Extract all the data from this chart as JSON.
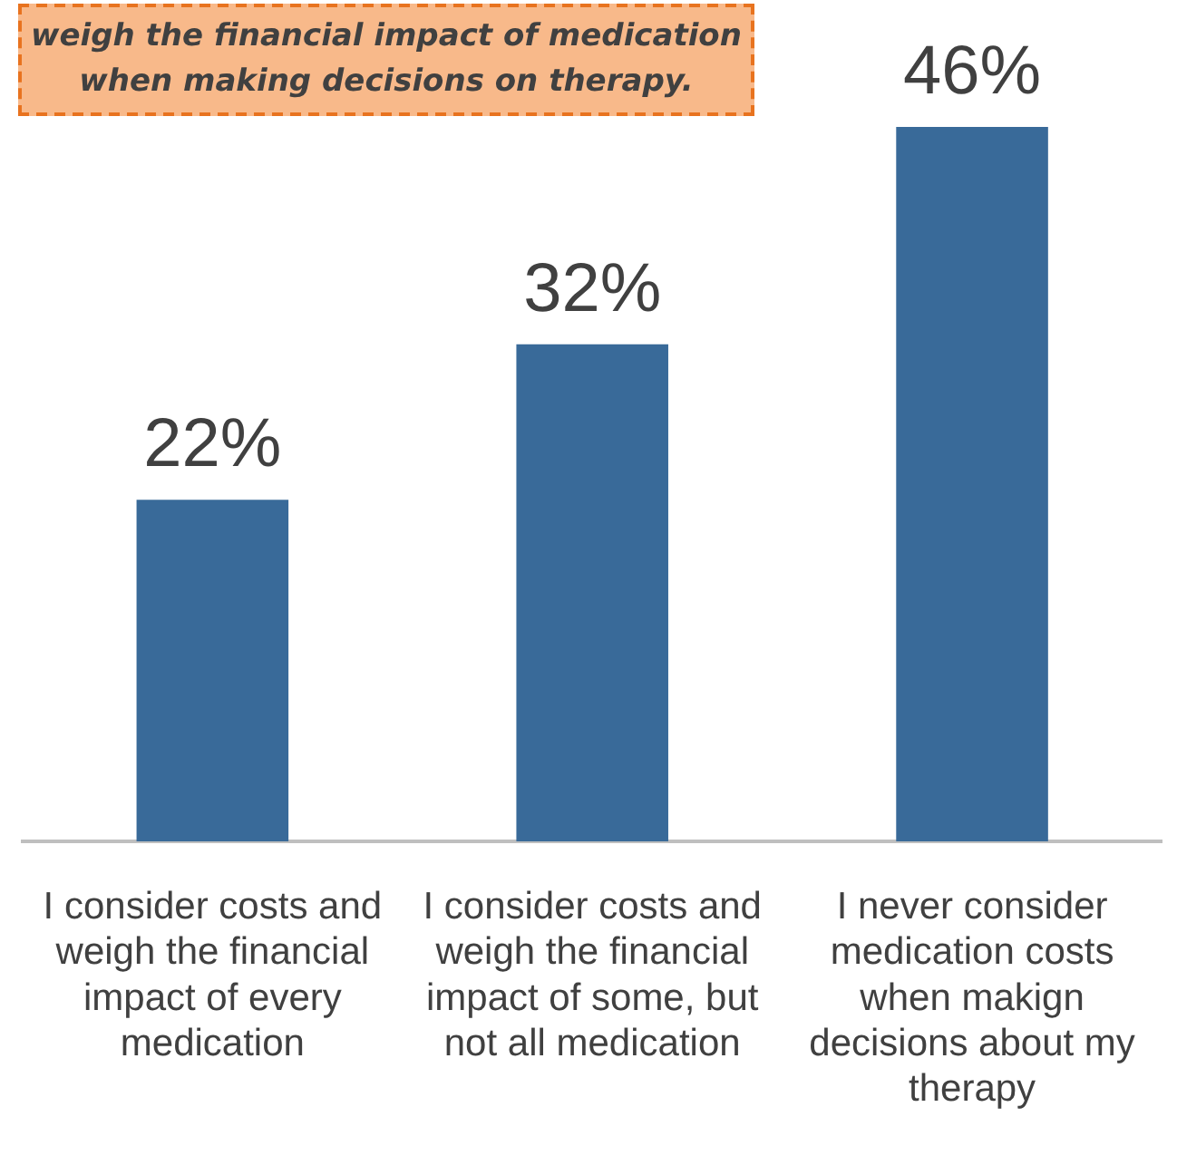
{
  "chart_data": {
    "type": "bar",
    "categories": [
      "I consider costs and weigh the financial impact of every medication",
      "I consider costs and weigh the financial impact of some, but not all medication",
      "I never consider medication costs when makign decisions about my therapy"
    ],
    "values": [
      22,
      32,
      46
    ],
    "value_labels": [
      "22%",
      "32%",
      "46%"
    ],
    "color": "#396a99",
    "ylim": [
      0,
      46
    ],
    "grid": false,
    "legend": false,
    "annotations": [
      "weigh the financial impact of medication when making decisions on therapy."
    ]
  }
}
